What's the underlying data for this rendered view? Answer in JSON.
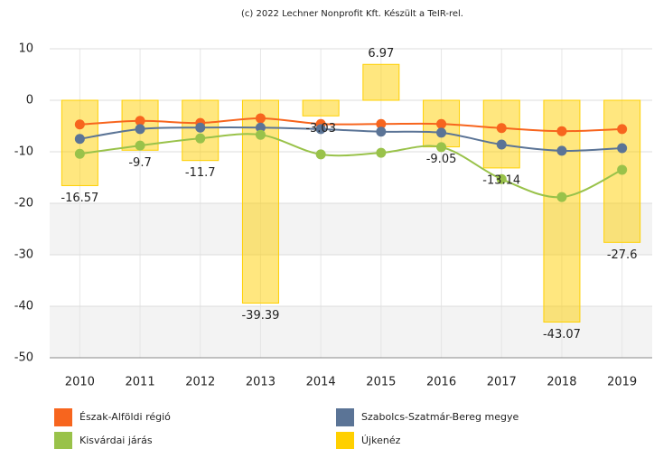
{
  "chart_data": {
    "type": "bar_line",
    "subtitle": "(c) 2022 Lechner Nonprofit Kft. Készült a TeIR-rel.",
    "categories": [
      "2010",
      "2011",
      "2012",
      "2013",
      "2014",
      "2015",
      "2016",
      "2017",
      "2018",
      "2019"
    ],
    "ylim": [
      -50,
      10
    ],
    "yticks": [
      10,
      0,
      -10,
      -20,
      -30,
      -40,
      -50
    ],
    "grid": true,
    "series": [
      {
        "name": "Észak-Alföldi régió",
        "color": "#f7651e",
        "kind": "line",
        "values": [
          -4.7,
          -4.0,
          -4.4,
          -3.5,
          -4.6,
          -4.6,
          -4.6,
          -5.4,
          -6.0,
          -5.6
        ]
      },
      {
        "name": "Szabolcs-Szatmár-Bereg megye",
        "color": "#5b7496",
        "kind": "line",
        "values": [
          -7.5,
          -5.6,
          -5.3,
          -5.3,
          -5.6,
          -6.1,
          -6.3,
          -8.6,
          -9.8,
          -9.3
        ]
      },
      {
        "name": "Kisvárdai járás",
        "color": "#99c24a",
        "kind": "line",
        "values": [
          -10.4,
          -8.8,
          -7.4,
          -6.7,
          -10.5,
          -10.2,
          -9.1,
          -15.3,
          -18.8,
          -13.5
        ]
      },
      {
        "name": "Újkenéz",
        "color": "#ffd000",
        "kind": "bar",
        "values": [
          -16.57,
          -9.7,
          -11.7,
          -39.39,
          -3.03,
          6.97,
          -9.05,
          -13.14,
          -43.07,
          -27.6
        ]
      }
    ]
  }
}
